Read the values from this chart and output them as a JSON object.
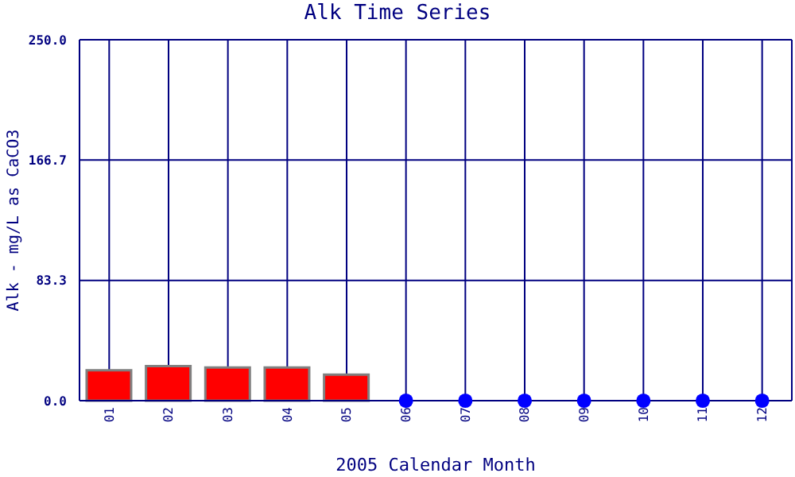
{
  "chart_data": {
    "type": "bar",
    "title": "Alk Time Series",
    "xlabel": "2005 Calendar Month",
    "ylabel": "Alk - mg/L as CaCO3",
    "categories": [
      "01",
      "02",
      "03",
      "04",
      "05",
      "06",
      "07",
      "08",
      "09",
      "10",
      "11",
      "12"
    ],
    "series": [
      {
        "color": "#ff0000",
        "values": [
          21,
          24,
          23,
          23,
          18,
          null,
          null,
          null,
          null,
          null,
          null,
          null
        ]
      },
      {
        "type": "scatter",
        "color": "#0000ff",
        "values": [
          null,
          null,
          null,
          null,
          null,
          0,
          0,
          0,
          0,
          0,
          0,
          0
        ]
      }
    ],
    "ylim": [
      0,
      250
    ],
    "yticks": [
      {
        "value": 0,
        "label": "0.0"
      },
      {
        "value": 83.3,
        "label": "83.3"
      },
      {
        "value": 166.7,
        "label": "166.7"
      },
      {
        "value": 250,
        "label": "250.0"
      }
    ],
    "grid": true,
    "marker": "circle"
  }
}
